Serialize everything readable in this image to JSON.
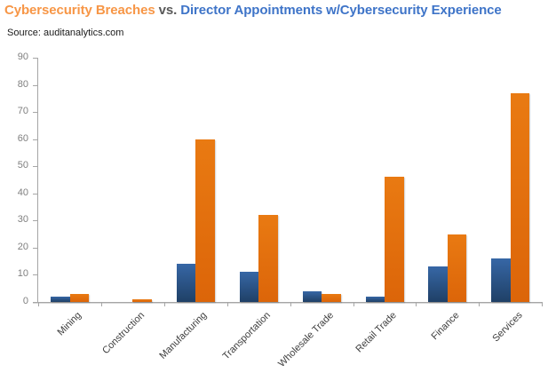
{
  "title": {
    "segments": [
      {
        "text": "Cybersecurity Breaches",
        "color": "#F79646"
      },
      {
        "text": " vs. ",
        "color": "#595959"
      },
      {
        "text": "Director Appointments w/Cybersecurity Experience",
        "color": "#3E74C8"
      }
    ]
  },
  "source": "Source: auditanalytics.com",
  "chart_data": {
    "type": "bar",
    "title": "Cybersecurity Breaches vs. Director Appointments w/Cybersecurity Experience",
    "categories": [
      "Mining",
      "Construction",
      "Manufacturing",
      "Transportation",
      "Wholesale Trade",
      "Retail Trade",
      "Finance",
      "Services"
    ],
    "series": [
      {
        "key": "appointments",
        "name": "Director Appointments w/Cybersecurity Experience",
        "color": "#2F609E",
        "color_top": "#3767A6",
        "color_bottom": "#1F4066",
        "values": [
          2,
          0,
          14,
          11,
          4,
          2,
          13,
          16
        ]
      },
      {
        "key": "breaches",
        "name": "Cybersecurity Breaches",
        "color": "#E2700E",
        "color_top": "#E97A12",
        "color_bottom": "#DC6509",
        "values": [
          3,
          1,
          60,
          32,
          3,
          46,
          25,
          77
        ]
      }
    ],
    "ylim": [
      0,
      90
    ],
    "ytick_interval": 10,
    "yticks": [
      0,
      10,
      20,
      30,
      40,
      50,
      60,
      70,
      80,
      90
    ],
    "grid": false,
    "legend_position": "none",
    "x_labels_rotation_deg": -45,
    "axis": {
      "color": "#A6A6A6",
      "shadow_color": "#D9D9D9",
      "tick_label_color": "#7F7F7F",
      "category_label_color": "#3D3D3D"
    }
  }
}
